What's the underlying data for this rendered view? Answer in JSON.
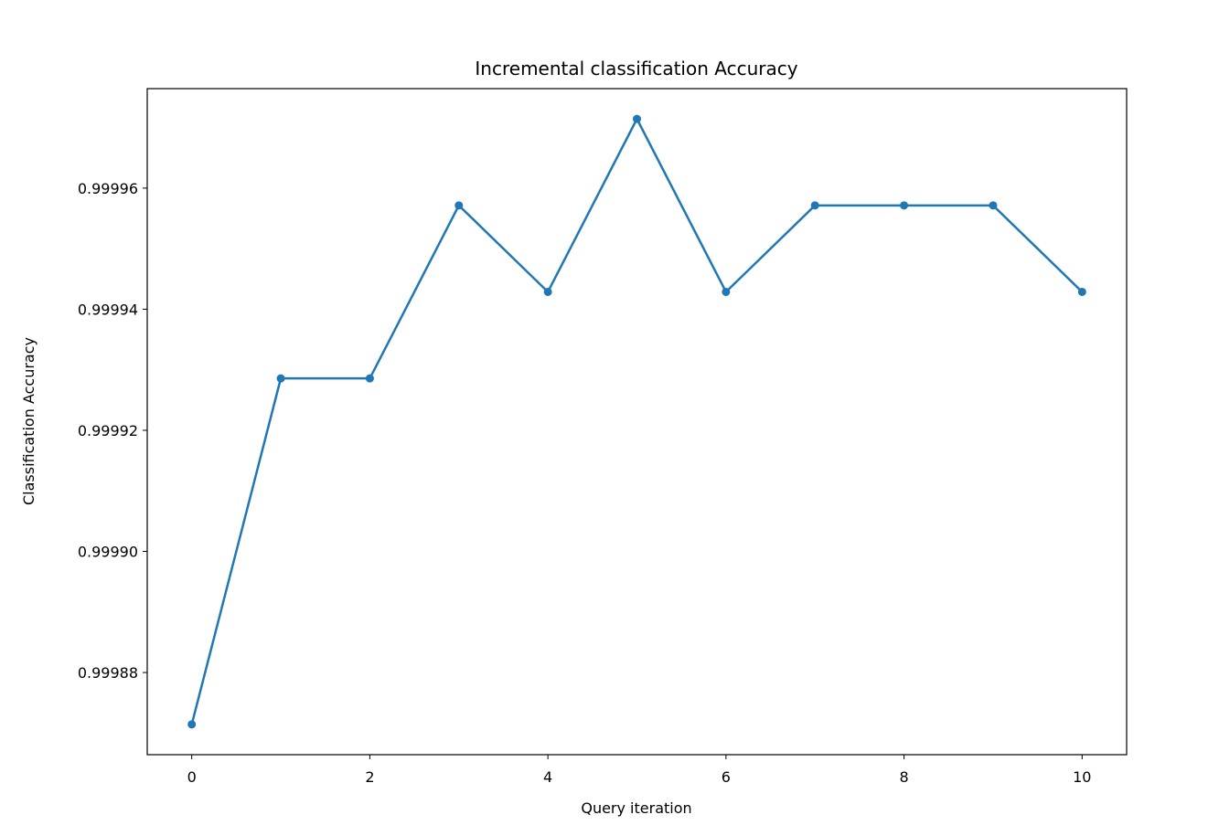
{
  "chart_data": {
    "type": "line",
    "title": "Incremental classification Accuracy",
    "x_label": "Query iteration",
    "y_label": "Classification Accuracy",
    "x": [
      0,
      1,
      2,
      3,
      4,
      5,
      6,
      7,
      8,
      9,
      10
    ],
    "series": [
      {
        "name": "Classification Accuracy",
        "color": "#1f77b4",
        "values": [
          0.99987143,
          0.99992857,
          0.99992857,
          0.99995714,
          0.99994286,
          0.99997143,
          0.99994286,
          0.99995714,
          0.99995714,
          0.99995714,
          0.99994286
        ]
      }
    ],
    "xlim": [
      -0.5,
      10.5
    ],
    "xticks": [
      0,
      2,
      4,
      6,
      8,
      10
    ],
    "ylim": [
      0.99986643,
      0.99997643
    ],
    "yticks": [
      {
        "value": 0.99988,
        "label": "0.99988"
      },
      {
        "value": 0.9999,
        "label": "0.99990"
      },
      {
        "value": 0.99992,
        "label": "0.99992"
      },
      {
        "value": 0.99994,
        "label": "0.99994"
      },
      {
        "value": 0.99996,
        "label": "0.99996"
      }
    ],
    "grid": false,
    "markers": true
  }
}
